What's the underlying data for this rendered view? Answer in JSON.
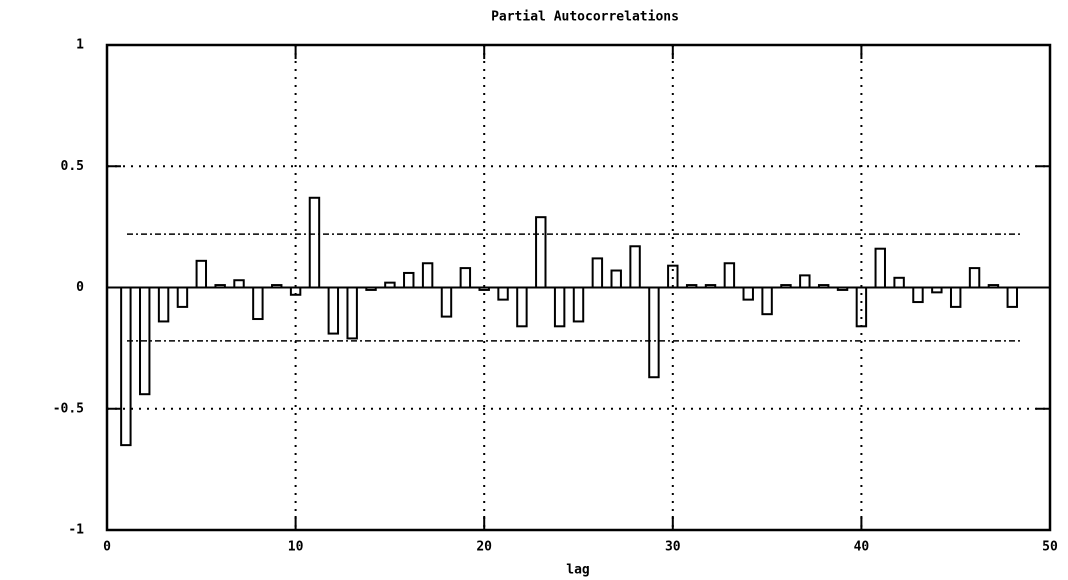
{
  "chart_data": {
    "type": "bar",
    "title": "Partial Autocorrelations",
    "x_label": "lag",
    "x": [
      1,
      2,
      3,
      4,
      5,
      6,
      7,
      8,
      9,
      10,
      11,
      12,
      13,
      14,
      15,
      16,
      17,
      18,
      19,
      20,
      21,
      22,
      23,
      24,
      25,
      26,
      27,
      28,
      29,
      30,
      31,
      32,
      33,
      34,
      35,
      36,
      37,
      38,
      39,
      40,
      41,
      42,
      43,
      44,
      45,
      46,
      47,
      48
    ],
    "values": [
      -0.65,
      -0.44,
      -0.14,
      -0.08,
      0.11,
      0.01,
      0.03,
      -0.13,
      0.01,
      -0.03,
      0.37,
      -0.19,
      -0.21,
      -0.01,
      0.02,
      0.06,
      0.1,
      -0.12,
      0.08,
      -0.01,
      -0.05,
      -0.16,
      0.29,
      -0.16,
      -0.14,
      0.12,
      0.07,
      0.17,
      -0.37,
      0.09,
      0.01,
      0.01,
      0.1,
      -0.05,
      -0.11,
      0.01,
      0.05,
      0.01,
      -0.01,
      -0.16,
      0.16,
      0.04,
      -0.06,
      -0.02,
      -0.08,
      0.08,
      0.01,
      -0.08
    ],
    "color": "#000000",
    "confidence_bands": [
      0.22,
      -0.22
    ],
    "xlim": [
      0,
      50
    ],
    "xticks": [
      0,
      10,
      20,
      30,
      40,
      50
    ],
    "ylim": [
      -1,
      1
    ],
    "yticks": [
      -1,
      -0.5,
      0,
      0.5,
      1
    ],
    "grid": true
  }
}
